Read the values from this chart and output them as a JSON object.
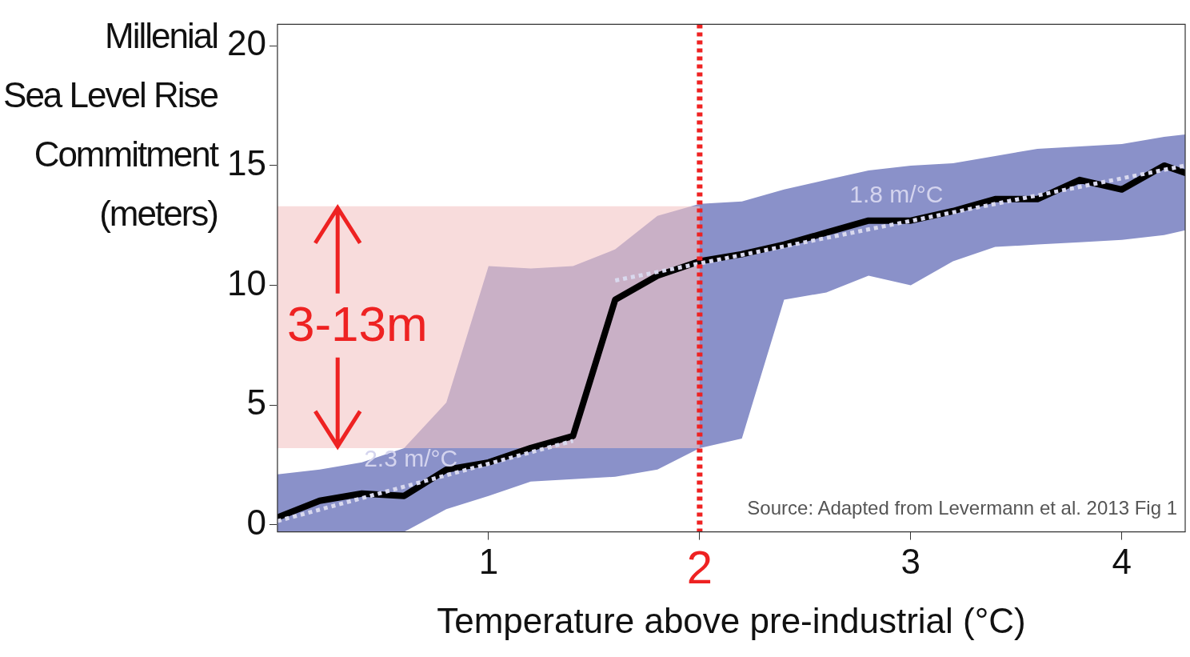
{
  "chart_data": {
    "type": "line",
    "xlabel": "Temperature above pre-industrial (°C)",
    "ylabel": "Millenial\nSea Level Rise\nCommitment\n(meters)",
    "xlim": [
      0,
      4.3
    ],
    "xticks": [
      1,
      2,
      3,
      4
    ],
    "ylim": [
      -0.3,
      20.9
    ],
    "yticks": [
      0,
      5,
      10,
      15,
      20
    ],
    "grid": false,
    "legend": false,
    "marker": "none",
    "series": [
      {
        "color": "#000000",
        "x": [
          0,
          0.2,
          0.4,
          0.6,
          0.8,
          1.0,
          1.2,
          1.4,
          1.6,
          1.8,
          2.0,
          2.2,
          2.4,
          2.6,
          2.8,
          3.0,
          3.2,
          3.4,
          3.6,
          3.8,
          4.0,
          4.2,
          4.3
        ],
        "values": [
          0.3,
          1.0,
          1.3,
          1.2,
          2.3,
          2.6,
          3.2,
          3.7,
          9.4,
          10.4,
          11.0,
          11.3,
          11.7,
          12.2,
          12.7,
          12.7,
          13.1,
          13.6,
          13.6,
          14.4,
          14.0,
          15.0,
          14.7
        ],
        "lower": [
          -0.3,
          -0.3,
          -0.3,
          -0.3,
          0.65,
          1.2,
          1.8,
          1.9,
          2.0,
          2.3,
          3.2,
          3.6,
          9.4,
          9.7,
          10.4,
          10.0,
          11.0,
          11.6,
          11.7,
          11.8,
          11.9,
          12.1,
          12.3
        ],
        "upper": [
          2.1,
          2.3,
          2.6,
          3.2,
          5.1,
          10.8,
          10.7,
          10.8,
          11.5,
          12.9,
          13.4,
          13.5,
          14.0,
          14.4,
          14.8,
          15.0,
          15.1,
          15.4,
          15.7,
          15.8,
          15.9,
          16.2,
          16.3
        ]
      },
      {
        "type": "line",
        "color": "#d9d9ee",
        "line_style": "dotted",
        "x": [
          0,
          1.4
        ],
        "values": [
          0.15,
          3.5
        ]
      },
      {
        "type": "line",
        "color": "#d9d9ee",
        "line_style": "dotted",
        "x": [
          1.6,
          4.3
        ],
        "values": [
          10.2,
          15.0
        ]
      }
    ],
    "ref_lines": [
      {
        "axis": "x",
        "value": 2,
        "color": "#ee2222",
        "line_style": "dotted"
      }
    ],
    "bands": [
      {
        "axis": "y",
        "from": 3.2,
        "to": 13.3,
        "label": "3-13m",
        "color": "#f4c4c4"
      }
    ],
    "annotations": [
      {
        "text": "2.3 m/°C",
        "x": 0.41,
        "y": 1.13
      },
      {
        "text": "1.8 m/°C",
        "x": 2.71,
        "y": 12.17
      },
      "Source: Adapted from Levermann et al. 2013 Fig 1"
    ]
  }
}
